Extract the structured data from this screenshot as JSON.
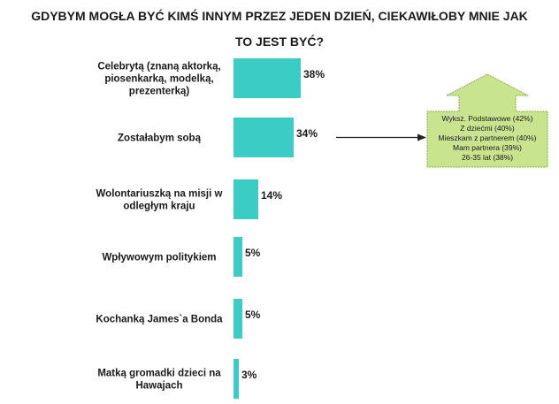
{
  "chart_data": {
    "type": "bar",
    "orientation": "horizontal",
    "title_lines": [
      "GDYBYM MOGŁA BYĆ KIMŚ INNYM PRZEZ JEDEN DZIEŃ, CIEKAWIŁOBY MNIE JAK",
      "TO JEST BYĆ?"
    ],
    "categories": [
      [
        "Celebrytą (znaną aktorką,",
        "piosenkarką, modelką,",
        "prezenterką)"
      ],
      [
        "Zostałabym sobą"
      ],
      [
        "Wolontariuszką na misji w",
        "odległym kraju"
      ],
      [
        "Wpływowym politykiem"
      ],
      [
        "Kochanką James`a Bonda"
      ],
      [
        "Matką gromadki dzieci na",
        "Hawajach"
      ]
    ],
    "values": [
      38,
      34,
      14,
      5,
      5,
      3
    ],
    "value_labels": [
      "38%",
      "34%",
      "14%",
      "5%",
      "5%",
      "3%"
    ],
    "bar_color": "#3cccc6",
    "callout": {
      "points_to_category_index": 1,
      "fill_color": "#c9e48f",
      "lines": [
        "Wyksz. Podstawowe (42%)",
        "Z dziećmi (40%)",
        "Mieszkam z partnerem (40%)",
        "Mam partnera (39%)",
        "26-35 lat (38%)"
      ]
    }
  }
}
